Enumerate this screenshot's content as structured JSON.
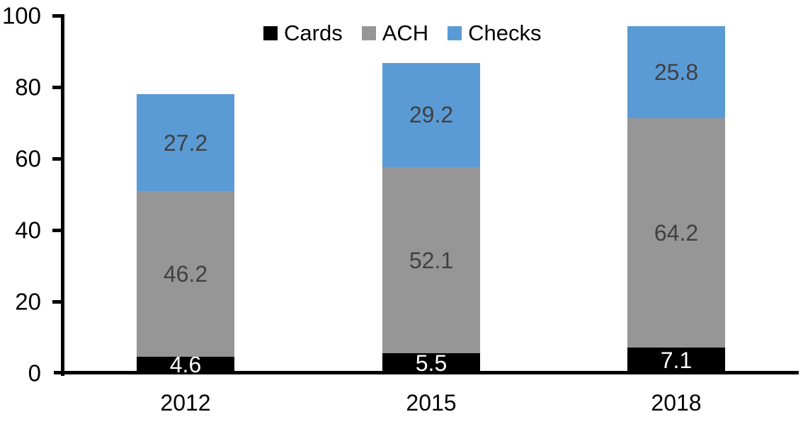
{
  "chart_data": {
    "type": "bar",
    "stacked": true,
    "title": "",
    "xlabel": "",
    "ylabel": "",
    "categories": [
      "2012",
      "2015",
      "2018"
    ],
    "series": [
      {
        "name": "Cards",
        "color": "#000000",
        "label_color": "#ffffff",
        "values": [
          4.6,
          5.5,
          7.1
        ]
      },
      {
        "name": "ACH",
        "color": "#969696",
        "label_color": "#404040",
        "values": [
          46.2,
          52.1,
          64.2
        ]
      },
      {
        "name": "Checks",
        "color": "#5b9bd5",
        "label_color": "#404040",
        "values": [
          27.2,
          29.2,
          25.8
        ]
      }
    ],
    "totals": [
      78.0,
      86.8,
      97.1
    ],
    "ylim": [
      0,
      100
    ],
    "yticks": [
      0,
      20,
      40,
      60,
      80,
      100
    ],
    "grid": false,
    "legend_position": "top",
    "axis_color": "#000000",
    "background_color": "#ffffff"
  }
}
